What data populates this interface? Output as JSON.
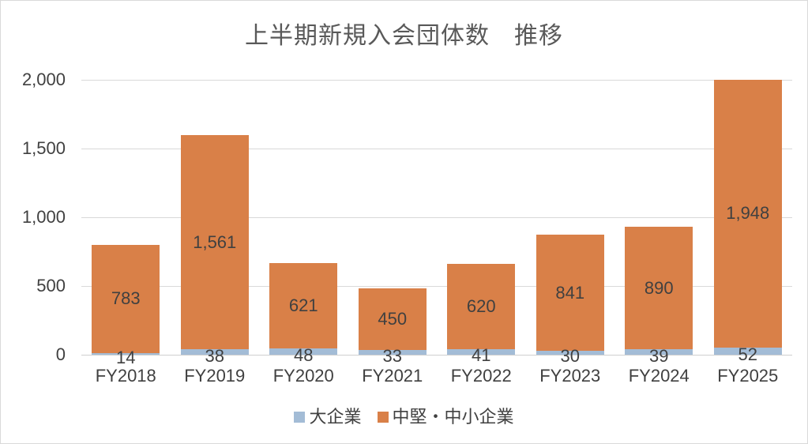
{
  "chart_data": {
    "type": "bar",
    "stacked": true,
    "title": "上半期新規入会団体数　推移",
    "categories": [
      "FY2018",
      "FY2019",
      "FY2020",
      "FY2021",
      "FY2022",
      "FY2023",
      "FY2024",
      "FY2025"
    ],
    "series": [
      {
        "name": "大企業",
        "color": "#A3BCD6",
        "values": [
          14,
          38,
          48,
          33,
          41,
          30,
          39,
          52
        ],
        "labels": [
          "14",
          "38",
          "48",
          "33",
          "41",
          "30",
          "39",
          "52"
        ]
      },
      {
        "name": "中堅・中小企業",
        "color": "#D98048",
        "values": [
          783,
          1561,
          621,
          450,
          620,
          841,
          890,
          1948
        ],
        "labels": [
          "783",
          "1,561",
          "621",
          "450",
          "620",
          "841",
          "890",
          "1,948"
        ]
      }
    ],
    "xlabel": "",
    "ylabel": "",
    "ylim": [
      0,
      2000
    ],
    "y_ticks": [
      {
        "value": 0,
        "label": "0"
      },
      {
        "value": 500,
        "label": "500"
      },
      {
        "value": 1000,
        "label": "1,000"
      },
      {
        "value": 1500,
        "label": "1,500"
      },
      {
        "value": 2000,
        "label": "2,000"
      }
    ],
    "grid": true,
    "legend_position": "bottom",
    "colors": {
      "title_text": "#595959",
      "label_text": "#404040",
      "gridline": "#D9D9D9",
      "chart_border": "#D9D9D9",
      "background": "#FFFFFF"
    }
  }
}
